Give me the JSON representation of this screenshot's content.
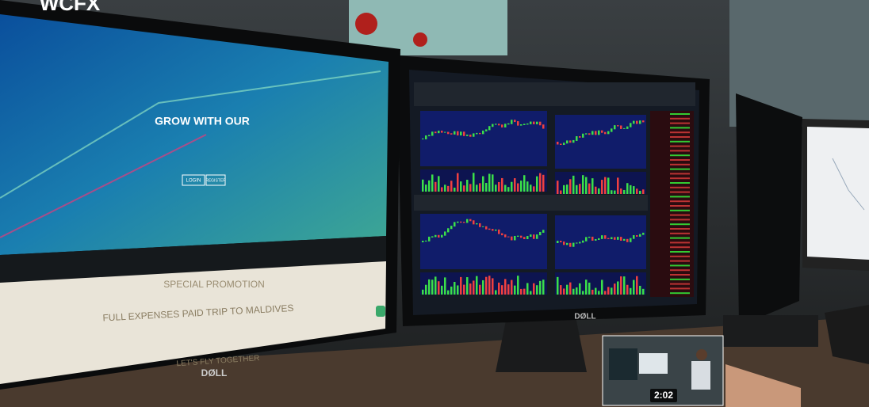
{
  "brand": "WCFX",
  "left_screen": {
    "hero_title": "GROW WITH OUR",
    "buttons": [
      "LOGIN",
      "REGISTER"
    ],
    "promo_title": "SPECIAL PROMOTION",
    "promo_subtitle": "FULL EXPENSES PAID TRIP TO MALDIVES",
    "promo_footer": "LET'S FLY TOGETHER"
  },
  "monitor_logo": "DØLL",
  "video": {
    "duration": "2:02"
  }
}
